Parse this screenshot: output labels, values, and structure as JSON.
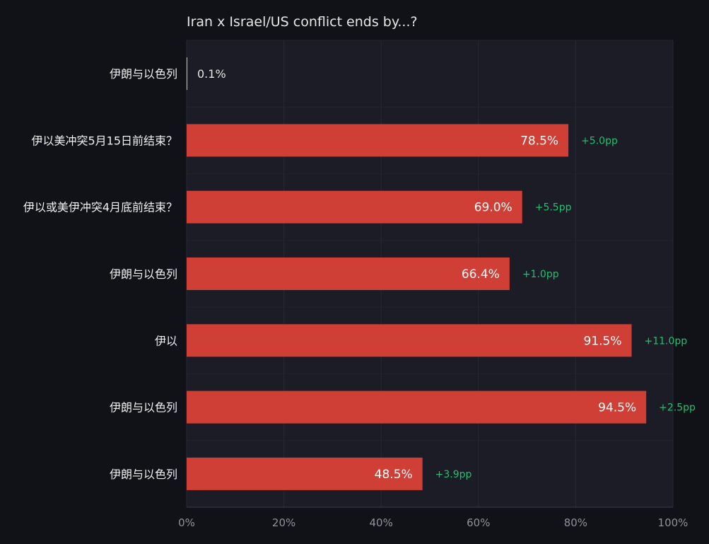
{
  "chart_data": {
    "type": "bar",
    "orientation": "horizontal",
    "title": "Iran x Israel/US conflict ends by...?",
    "categories": [
      "伊朗与以色列",
      "伊以美冲突5月15日前结束？",
      "伊以或美伊冲突4月底前结束？",
      "伊朗与以色列",
      "伊以",
      "伊朗与以色列",
      "伊朗与以色列"
    ],
    "values": [
      0.1,
      78.5,
      69.0,
      66.4,
      91.5,
      94.5,
      48.5
    ],
    "value_labels": [
      "0.1%",
      "78.5%",
      "69.0%",
      "66.4%",
      "91.5%",
      "94.5%",
      "48.5%"
    ],
    "deltas": [
      "",
      "+5.0pp",
      "+5.5pp",
      "+1.0pp",
      "+11.0pp",
      "+2.5pp",
      "+3.9pp"
    ],
    "xlim": [
      0,
      100
    ],
    "x_ticks": [
      "0%",
      "20%",
      "40%",
      "60%",
      "80%",
      "100%"
    ],
    "grid": true,
    "colors": {
      "bar": "#d03f36",
      "delta": "#22c16e",
      "background": "#111217",
      "plot_background": "#1b1c25"
    }
  }
}
